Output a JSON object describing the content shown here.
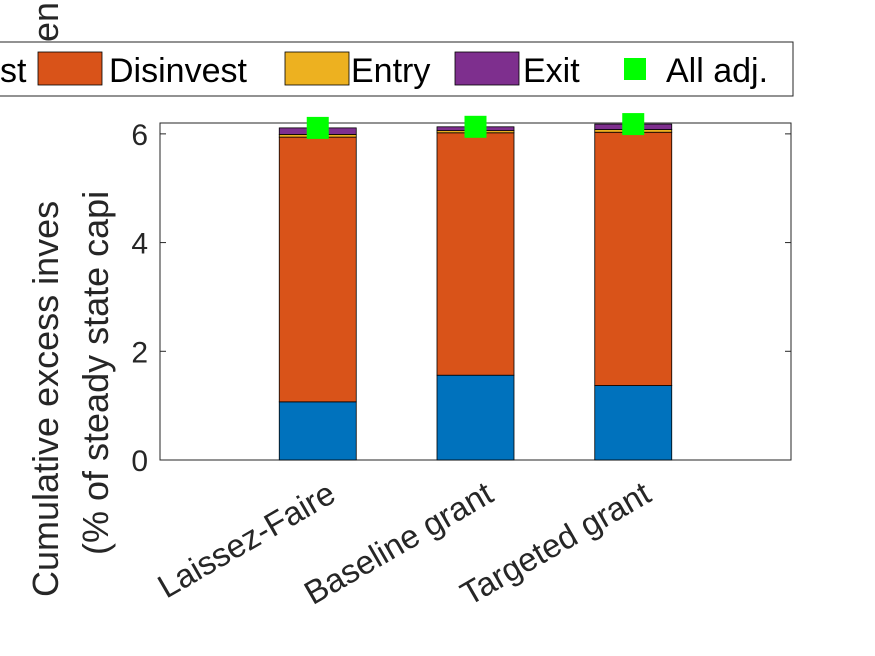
{
  "chart_data": {
    "type": "bar",
    "stacked": true,
    "categories": [
      "Laissez-Faire",
      "Baseline grant",
      "Targeted grant"
    ],
    "series": [
      {
        "name": "Invest",
        "color": "#0072BD",
        "values": [
          1.07,
          1.56,
          1.37
        ]
      },
      {
        "name": "Disinvest",
        "color": "#D95319",
        "values": [
          4.87,
          4.46,
          4.66
        ]
      },
      {
        "name": "Entry",
        "color": "#EDB120",
        "values": [
          0.05,
          0.04,
          0.05
        ]
      },
      {
        "name": "Exit",
        "color": "#7E2F8E",
        "values": [
          0.12,
          0.07,
          0.1
        ]
      }
    ],
    "markers": {
      "name": "All adj.",
      "color": "#00FF00",
      "values": [
        6.11,
        6.13,
        6.18
      ]
    },
    "legend_labels": [
      "st",
      "Disinvest",
      "Entry",
      "Exit",
      "All adj."
    ],
    "ylabel_lines": [
      "Cumulative excess inves",
      "(% of steady state capi"
    ],
    "ylabel_fragment": "en",
    "yticks": [
      "0",
      "2",
      "4",
      "6"
    ],
    "ylim": [
      0,
      6.2
    ],
    "legend_position": "top",
    "grid": false
  }
}
